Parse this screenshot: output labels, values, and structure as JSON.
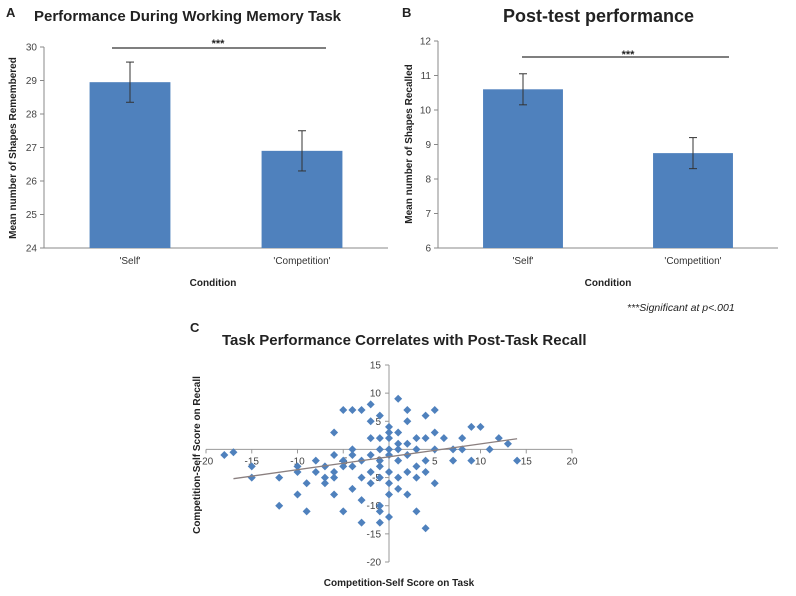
{
  "chart_data": [
    {
      "id": "A",
      "type": "bar",
      "panel_label": "A",
      "title": "Performance During Working Memory Task",
      "xlabel": "Condition",
      "ylabel": "Mean number of Shapes Remembered",
      "categories": [
        "'Self'",
        "'Competition'"
      ],
      "values": [
        28.95,
        26.9
      ],
      "error": [
        0.6,
        0.6
      ],
      "ylim": [
        24,
        30
      ],
      "yticks": [
        24,
        25,
        26,
        27,
        28,
        29,
        30
      ],
      "significance": "***",
      "bar_color": "#4f81bd"
    },
    {
      "id": "B",
      "type": "bar",
      "panel_label": "B",
      "title": "Post-test performance",
      "xlabel": "Condition",
      "ylabel": "Mean number of Shapes Recalled",
      "categories": [
        "'Self'",
        "'Competition'"
      ],
      "values": [
        10.6,
        8.75
      ],
      "error": [
        0.45,
        0.45
      ],
      "ylim": [
        6,
        12
      ],
      "yticks": [
        6,
        7,
        8,
        9,
        10,
        11,
        12
      ],
      "significance": "***",
      "bar_color": "#4f81bd"
    },
    {
      "id": "C",
      "type": "scatter",
      "panel_label": "C",
      "title": "Task Performance Correlates with Post-Task Recall",
      "xlabel": "Competition-Self Score on Task",
      "ylabel": "Competition-Self Score on Recall",
      "xlim": [
        -20,
        20
      ],
      "ylim": [
        -20,
        15
      ],
      "xticks": [
        -20,
        -15,
        -10,
        -5,
        0,
        5,
        10,
        15,
        20
      ],
      "yticks": [
        15,
        10,
        5,
        0,
        -5,
        -10,
        -15,
        -20
      ],
      "trendline": {
        "x": [
          -17,
          14
        ],
        "y": [
          -5.2,
          1.9
        ]
      },
      "marker_color": "#4f81bd",
      "points": [
        [
          -18,
          -1
        ],
        [
          -17,
          -0.5
        ],
        [
          -15,
          -3
        ],
        [
          -15,
          -5
        ],
        [
          -12,
          -10
        ],
        [
          -12,
          -5
        ],
        [
          -10,
          -3
        ],
        [
          -10,
          -8
        ],
        [
          -9,
          -11
        ],
        [
          -9,
          -6
        ],
        [
          -8,
          -2
        ],
        [
          -8,
          -4
        ],
        [
          -7,
          -3
        ],
        [
          -7,
          -5
        ],
        [
          -7,
          -6
        ],
        [
          -6,
          3
        ],
        [
          -6,
          -1
        ],
        [
          -6,
          -4
        ],
        [
          -6,
          -8
        ],
        [
          -5,
          7
        ],
        [
          -5,
          -2
        ],
        [
          -5,
          -3
        ],
        [
          -5,
          -11
        ],
        [
          -4,
          7
        ],
        [
          -4,
          -1
        ],
        [
          -4,
          -3
        ],
        [
          -4,
          -7
        ],
        [
          -3,
          7
        ],
        [
          -3,
          -2
        ],
        [
          -3,
          -5
        ],
        [
          -3,
          -9
        ],
        [
          -3,
          -13
        ],
        [
          -2,
          8
        ],
        [
          -2,
          5
        ],
        [
          -2,
          -1
        ],
        [
          -2,
          -4
        ],
        [
          -2,
          -6
        ],
        [
          -1,
          2
        ],
        [
          -1,
          0
        ],
        [
          -1,
          -3
        ],
        [
          -1,
          -5
        ],
        [
          -1,
          -10
        ],
        [
          -1,
          -11
        ],
        [
          0,
          4
        ],
        [
          0,
          2
        ],
        [
          0,
          0
        ],
        [
          0,
          -1
        ],
        [
          0,
          -4
        ],
        [
          0,
          -6
        ],
        [
          0,
          -8
        ],
        [
          0,
          -12
        ],
        [
          -1,
          -13
        ],
        [
          1,
          9
        ],
        [
          1,
          3
        ],
        [
          1,
          0
        ],
        [
          1,
          -2
        ],
        [
          1,
          -5
        ],
        [
          1,
          -7
        ],
        [
          2,
          7
        ],
        [
          2,
          5
        ],
        [
          2,
          1
        ],
        [
          2,
          -1
        ],
        [
          2,
          -4
        ],
        [
          3,
          2
        ],
        [
          3,
          0
        ],
        [
          3,
          -3
        ],
        [
          3,
          -5
        ],
        [
          4,
          6
        ],
        [
          4,
          2
        ],
        [
          4,
          -2
        ],
        [
          4,
          -4
        ],
        [
          4,
          -14
        ],
        [
          5,
          7
        ],
        [
          5,
          3
        ],
        [
          5,
          0
        ],
        [
          5,
          -6
        ],
        [
          6,
          2
        ],
        [
          7,
          0
        ],
        [
          7,
          -2
        ],
        [
          8,
          2
        ],
        [
          8,
          0
        ],
        [
          9,
          4
        ],
        [
          9,
          -2
        ],
        [
          10,
          4
        ],
        [
          11,
          0
        ],
        [
          12,
          2
        ],
        [
          13,
          1
        ],
        [
          14,
          -2
        ],
        [
          -2,
          2
        ],
        [
          -4,
          0
        ],
        [
          3,
          -11
        ],
        [
          -6,
          -5
        ],
        [
          -10,
          -4
        ],
        [
          2,
          -8
        ],
        [
          -1,
          6
        ],
        [
          -1,
          -2
        ],
        [
          0,
          3
        ],
        [
          1,
          1
        ]
      ]
    }
  ],
  "footnote": "***Significant at p<.001"
}
